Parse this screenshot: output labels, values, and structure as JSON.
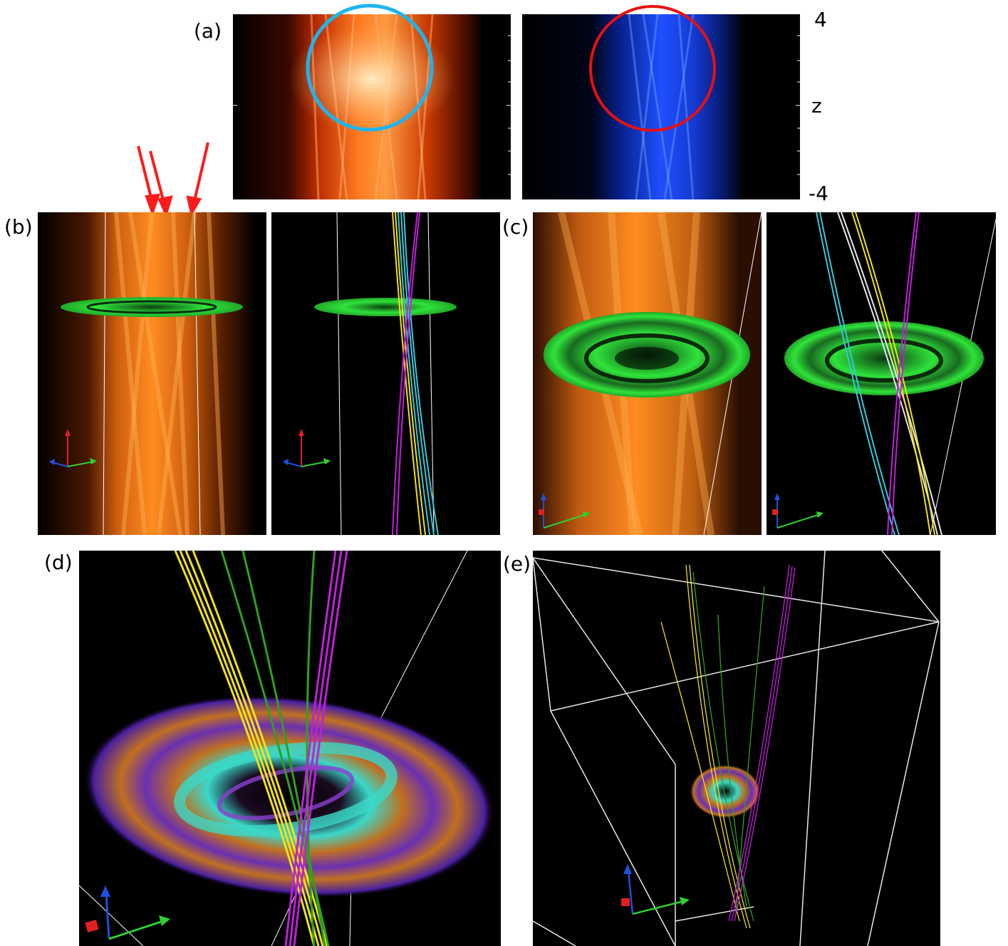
{
  "labels": {
    "a": "(a)",
    "b": "(b)",
    "c": "(c)",
    "d": "(d)",
    "e": "(e)"
  },
  "axis": {
    "top": "4",
    "mid": "z",
    "bottom": "-4"
  },
  "colors": {
    "orange": "#ff7a10",
    "blue": "#1f4fff",
    "cyan_circle": "#1eb4ee",
    "red_circle": "#e81010",
    "arrow": "#ff1a1a",
    "disk_green": "#2fe33a",
    "line_yellow": "#f0e020",
    "line_magenta": "#c020d8",
    "line_cyan": "#38c8d8",
    "line_green": "#30a020",
    "line_white": "#e8e8e8",
    "triad_x": "#30d030",
    "triad_y": "#e02020",
    "triad_z": "#2050e0"
  }
}
